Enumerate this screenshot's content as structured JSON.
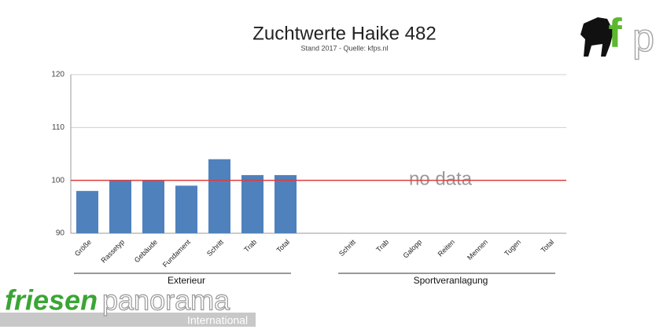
{
  "chart_data": {
    "type": "bar",
    "title": "Zuchtwerte Haike 482",
    "subtitle": "Stand 2017 - Quelle: kfps.nl",
    "categories": [
      "Größe",
      "Rassetyp",
      "Gebäude",
      "Fundament",
      "Schritt",
      "Trab",
      "Total",
      null,
      "Schritt",
      "Trab",
      "Galopp",
      "Reiten",
      "Mennen",
      "Tugen",
      "Total"
    ],
    "values": [
      98,
      100,
      100,
      99,
      104,
      101,
      101,
      null,
      null,
      null,
      null,
      null,
      null,
      null,
      null
    ],
    "color": "#4f81bd",
    "ylim": [
      90,
      120
    ],
    "yticks": [
      90,
      100,
      110,
      120
    ],
    "grid": true,
    "reference_line": {
      "value": 100,
      "color": "#e03c3c"
    },
    "annotation": "no data",
    "groups": [
      "Exterieur",
      "Sportveranlagung"
    ]
  },
  "logo": {
    "top_left": "f",
    "top_right": "p",
    "brand_first": "friesen",
    "brand_second": "panorama",
    "brand_sub": "International"
  }
}
